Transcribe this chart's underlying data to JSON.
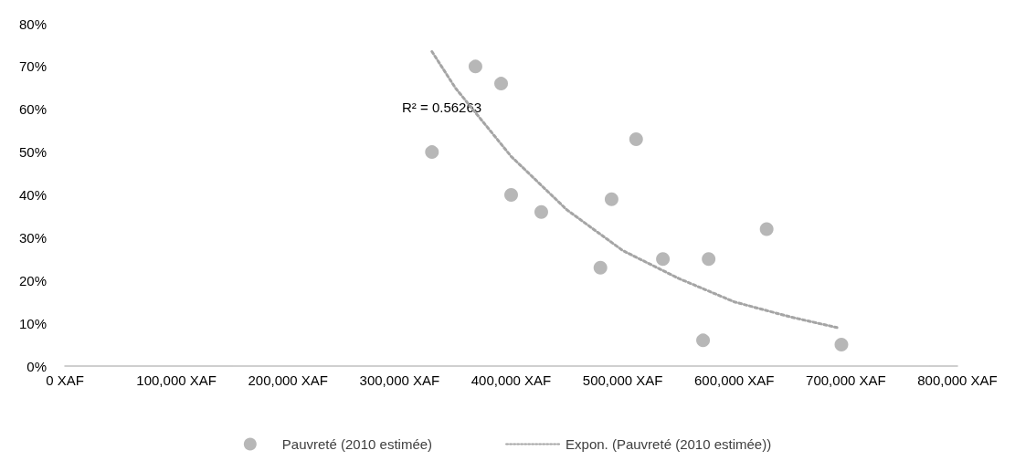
{
  "chart_data": {
    "type": "scatter",
    "marker": "circle",
    "legend": "bottom",
    "grid": false,
    "xlim": [
      0,
      800000
    ],
    "xticks": [
      {
        "value": 0,
        "label": "0 XAF"
      },
      {
        "value": 100000,
        "label": "100,000 XAF"
      },
      {
        "value": 200000,
        "label": "200,000 XAF"
      },
      {
        "value": 300000,
        "label": "300,000 XAF"
      },
      {
        "value": 400000,
        "label": "400,000 XAF"
      },
      {
        "value": 500000,
        "label": "500,000 XAF"
      },
      {
        "value": 600000,
        "label": "600,000 XAF"
      },
      {
        "value": 700000,
        "label": "700,000 XAF"
      },
      {
        "value": 800000,
        "label": "800,000 XAF"
      }
    ],
    "ylim": [
      0,
      80
    ],
    "yticks": [
      {
        "value": 0,
        "label": "0%"
      },
      {
        "value": 10,
        "label": "10%"
      },
      {
        "value": 20,
        "label": "20%"
      },
      {
        "value": 30,
        "label": "30%"
      },
      {
        "value": 40,
        "label": "40%"
      },
      {
        "value": 50,
        "label": "50%"
      },
      {
        "value": 60,
        "label": "60%"
      },
      {
        "value": 70,
        "label": "70%"
      },
      {
        "value": 80,
        "label": "80%"
      }
    ],
    "annotations": [
      "R² = 0.56263"
    ],
    "series": [
      {
        "name": "Pauvreté (2010 estimée)",
        "color": "#a5a5a5",
        "x": [
          329000,
          368000,
          391000,
          400000,
          427000,
          480000,
          490000,
          512000,
          536000,
          572000,
          577000,
          629000,
          696000
        ],
        "values": [
          50,
          70,
          66,
          40,
          36,
          23,
          39,
          53,
          25,
          6,
          25,
          32,
          5
        ]
      },
      {
        "name": "Expon. (Pauvreté (2010 estimée))",
        "type": "line",
        "color": "#a5a5a5",
        "line_style": "dotted",
        "marker": "none",
        "x": [
          329000,
          350000,
          400000,
          450000,
          500000,
          550000,
          600000,
          650000,
          692000
        ],
        "values": [
          73.5,
          65,
          49,
          36.5,
          27,
          20.5,
          15,
          11.5,
          9
        ]
      }
    ]
  }
}
